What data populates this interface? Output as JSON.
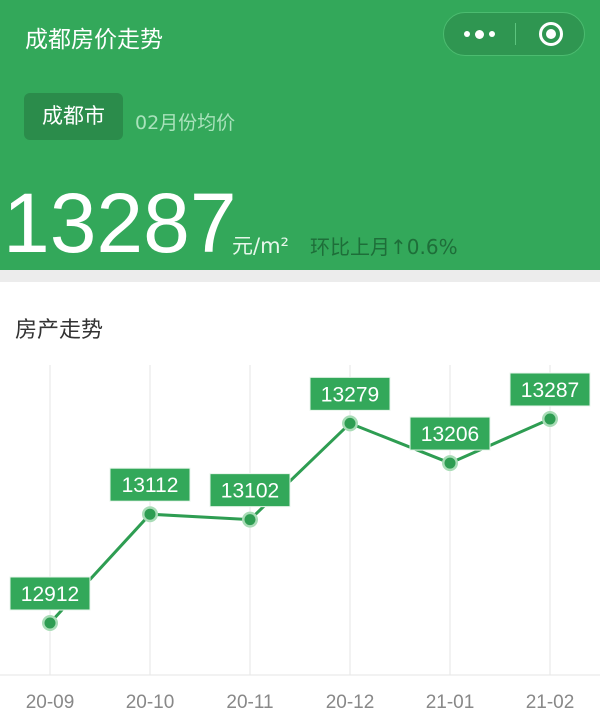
{
  "header": {
    "title": "成都房价走势",
    "city_label": "成都市",
    "period_label": "02月份均价",
    "price": "13287",
    "unit": "元/m²",
    "mom_change": "环比上月↑0.6%",
    "capsule": {
      "more_icon": "more-dots-icon",
      "close_icon": "target-circle-icon"
    }
  },
  "colors": {
    "brand": "#33a85a",
    "badge": "#2b8c4b",
    "line": "#2e9d52",
    "point_halo": "#a8dcb6"
  },
  "section": {
    "title": "房产走势"
  },
  "chart_data": {
    "type": "line",
    "categories": [
      "20-09",
      "20-10",
      "20-11",
      "20-12",
      "21-01",
      "21-02"
    ],
    "values": [
      12912,
      13112,
      13102,
      13279,
      13206,
      13287
    ],
    "data_labels": [
      "12912",
      "13112",
      "13102",
      "13279",
      "13206",
      "13287"
    ],
    "grid": "vertical",
    "legend": "none"
  }
}
